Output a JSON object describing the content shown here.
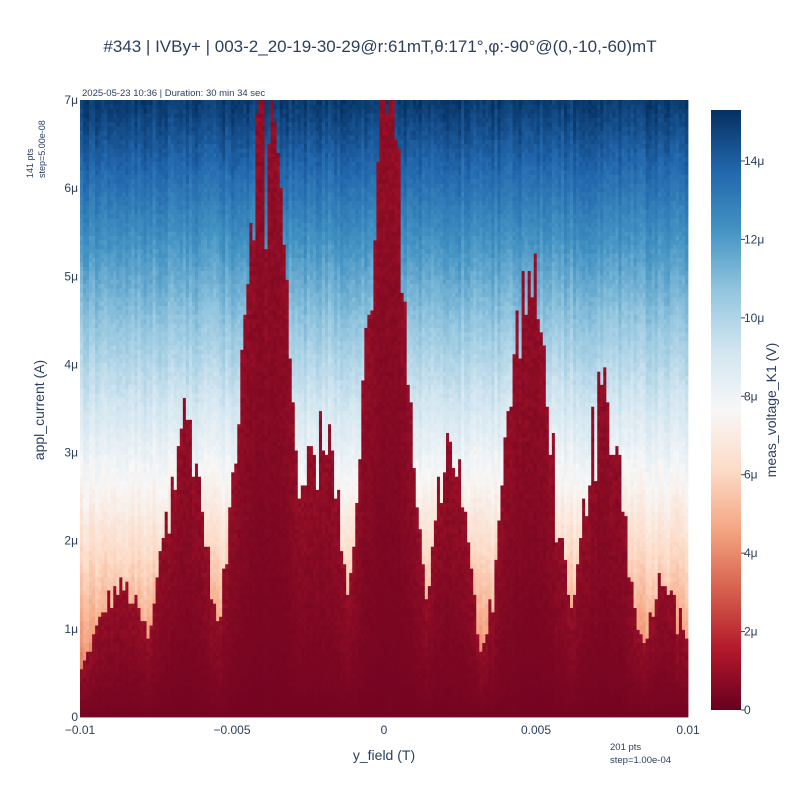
{
  "chart_data": {
    "type": "heatmap",
    "title": "#343 | IVBy+ | 003-2_20-19-30-29@r:61mT,θ:171°,φ:-90°@(0,-10,-60)mT",
    "annotation_top": "2025-05-23 10:36 | Duration: 30 min 34 sec",
    "xlabel": "y_field (T)",
    "ylabel": "appl_current (A)",
    "colorbar_label": "meas_voltage_K1 (V)",
    "x_points_label": "201 pts",
    "x_step_label": "step=1.00e-04",
    "y_points_label": "141 pts",
    "y_step_label": "step=5.00e-08",
    "x_range": [
      -0.01,
      0.01
    ],
    "y_range": [
      0,
      7e-06
    ],
    "x_count": 201,
    "y_count": 141,
    "x_step": 0.0001,
    "y_step": 5e-08,
    "x_ticks": [
      {
        "value": -0.01,
        "label": "−0.01"
      },
      {
        "value": -0.005,
        "label": "−0.005"
      },
      {
        "value": 0,
        "label": "0"
      },
      {
        "value": 0.005,
        "label": "0.005"
      },
      {
        "value": 0.01,
        "label": "0.01"
      }
    ],
    "y_ticks": [
      {
        "value": 0,
        "label": "0"
      },
      {
        "value": 1e-06,
        "label": "1μ"
      },
      {
        "value": 2e-06,
        "label": "2μ"
      },
      {
        "value": 3e-06,
        "label": "3μ"
      },
      {
        "value": 4e-06,
        "label": "4μ"
      },
      {
        "value": 5e-06,
        "label": "5μ"
      },
      {
        "value": 6e-06,
        "label": "6μ"
      },
      {
        "value": 7e-06,
        "label": "7μ"
      }
    ],
    "colorbar_range": [
      0,
      1.53e-05
    ],
    "colorbar_ticks": [
      {
        "value": 0,
        "label": "0"
      },
      {
        "value": 2e-06,
        "label": "2μ"
      },
      {
        "value": 4e-06,
        "label": "4μ"
      },
      {
        "value": 6e-06,
        "label": "6μ"
      },
      {
        "value": 8e-06,
        "label": "8μ"
      },
      {
        "value": 1e-05,
        "label": "10μ"
      },
      {
        "value": 1.2e-05,
        "label": "12μ"
      },
      {
        "value": 1.4e-05,
        "label": "14μ"
      }
    ],
    "colorscale": [
      [
        0.0,
        "#67001f"
      ],
      [
        0.1,
        "#b2182b"
      ],
      [
        0.2,
        "#d6604d"
      ],
      [
        0.3,
        "#f4a582"
      ],
      [
        0.4,
        "#fddbc7"
      ],
      [
        0.5,
        "#f7f7f7"
      ],
      [
        0.6,
        "#d1e5f0"
      ],
      [
        0.7,
        "#92c5de"
      ],
      [
        0.8,
        "#4393c3"
      ],
      [
        0.9,
        "#2166ac"
      ],
      [
        1.0,
        "#053061"
      ]
    ],
    "switching_current_peaks": [
      {
        "y_field": -0.0087,
        "width": 0.0009,
        "height": 1.45e-06
      },
      {
        "y_field": -0.0066,
        "width": 0.0007,
        "height": 3.4e-06
      },
      {
        "y_field": -0.0039,
        "width": 0.0008,
        "height": 7e-06
      },
      {
        "y_field": -0.0021,
        "width": 0.0007,
        "height": 3.4e-06
      },
      {
        "y_field": 0.0001,
        "width": 0.0007,
        "height": 7e-06
      },
      {
        "y_field": 0.0022,
        "width": 0.0006,
        "height": 3.1e-06
      },
      {
        "y_field": 0.0048,
        "width": 0.0008,
        "height": 4.9e-06
      },
      {
        "y_field": 0.0073,
        "width": 0.0007,
        "height": 3.7e-06
      },
      {
        "y_field": 0.0093,
        "width": 0.0006,
        "height": 1.6e-06
      }
    ],
    "baseline_switching_current": 3.5e-07,
    "normal_state_voltage_at_min_current": 3e-06,
    "normal_state_voltage_at_max_current": 1.5e-05,
    "superconducting_state_voltage": 3e-07
  }
}
